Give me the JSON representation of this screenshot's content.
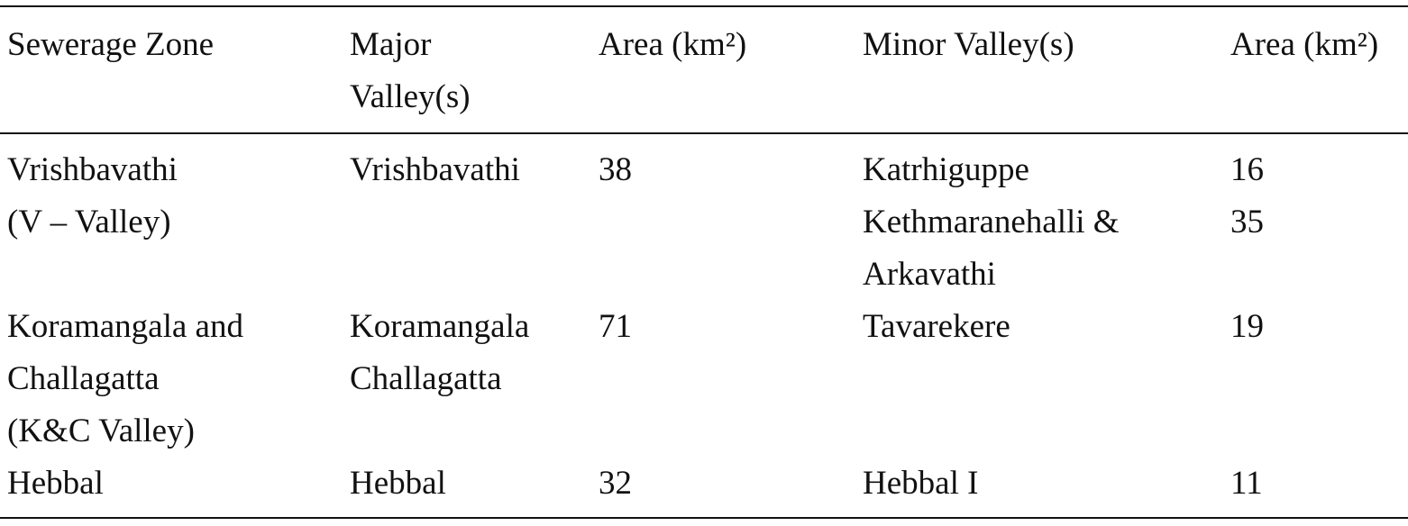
{
  "table": {
    "header": [
      [
        "Sewerage Zone"
      ],
      [
        "Major",
        "Valley(s)"
      ],
      [
        "Area (km²)"
      ],
      [
        "Minor Valley(s)"
      ],
      [
        "Area (km²)"
      ]
    ],
    "rows": [
      {
        "zone": [
          "Vrishbavathi",
          "(V – Valley)"
        ],
        "major": [
          "Vrishbavathi"
        ],
        "area": 38,
        "minor": [
          {
            "name": [
              "Katrhiguppe"
            ],
            "area": 16
          },
          {
            "name": [
              "Kethmaranehalli &",
              "Arkavathi"
            ],
            "area": 35
          }
        ]
      },
      {
        "zone": [
          "Koramangala and",
          "Challagatta",
          "(K&C Valley)"
        ],
        "major": [
          "Koramangala",
          "Challagatta"
        ],
        "area": 71,
        "minor": [
          {
            "name": [
              "Tavarekere"
            ],
            "area": 19
          }
        ]
      },
      {
        "zone": [
          "Hebbal"
        ],
        "major": [
          "Hebbal"
        ],
        "area": 32,
        "minor": [
          {
            "name": [
              "Hebbal I"
            ],
            "area": 11
          }
        ]
      }
    ]
  }
}
